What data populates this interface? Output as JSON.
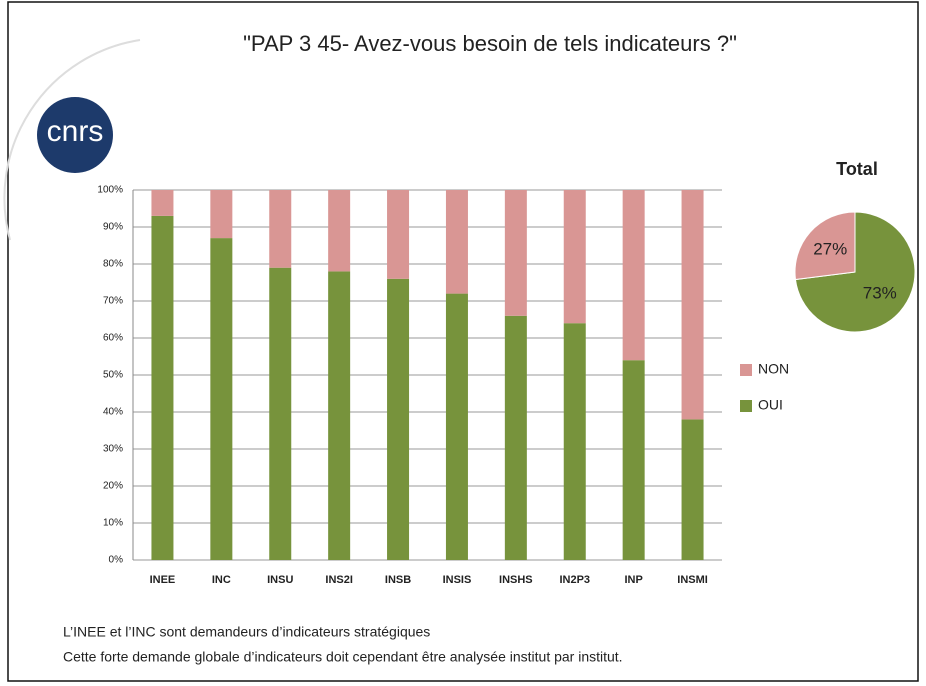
{
  "title": "\"PAP 3  45- Avez-vous besoin de tels indicateurs ?\"",
  "logo": "cnrs",
  "notes": [
    "L’INEE et l’INC sont demandeurs d’indicateurs stratégiques",
    "Cette forte demande globale d’indicateurs doit cependant être analysée institut par institut."
  ],
  "chart_data": [
    {
      "type": "stacked_bar",
      "categories": [
        "INEE",
        "INC",
        "INSU",
        "INS2I",
        "INSB",
        "INSIS",
        "INSHS",
        "IN2P3",
        "INP",
        "INSMI"
      ],
      "series": [
        {
          "name": "OUI",
          "color": "#77933c",
          "values": [
            93,
            87,
            79,
            78,
            76,
            72,
            66,
            64,
            54,
            38
          ]
        },
        {
          "name": "NON",
          "color": "#d99694",
          "values": [
            7,
            13,
            21,
            22,
            24,
            28,
            34,
            36,
            46,
            62
          ]
        }
      ],
      "ylim": [
        0,
        100
      ],
      "yticks": [
        {
          "value": 0,
          "label": "0%"
        },
        {
          "value": 10,
          "label": "10%"
        },
        {
          "value": 20,
          "label": "20%"
        },
        {
          "value": 30,
          "label": "30%"
        },
        {
          "value": 40,
          "label": "40%"
        },
        {
          "value": 50,
          "label": "50%"
        },
        {
          "value": 60,
          "label": "60%"
        },
        {
          "value": 70,
          "label": "70%"
        },
        {
          "value": 80,
          "label": "80%"
        },
        {
          "value": 90,
          "label": "90%"
        },
        {
          "value": 100,
          "label": "100%"
        }
      ],
      "grid": true,
      "legend": "right"
    },
    {
      "type": "pie",
      "title": "Total",
      "values": [
        73,
        27
      ],
      "value_labels": [
        "73%",
        "27%"
      ],
      "colors": [
        "#77933c",
        "#d99694"
      ]
    }
  ]
}
